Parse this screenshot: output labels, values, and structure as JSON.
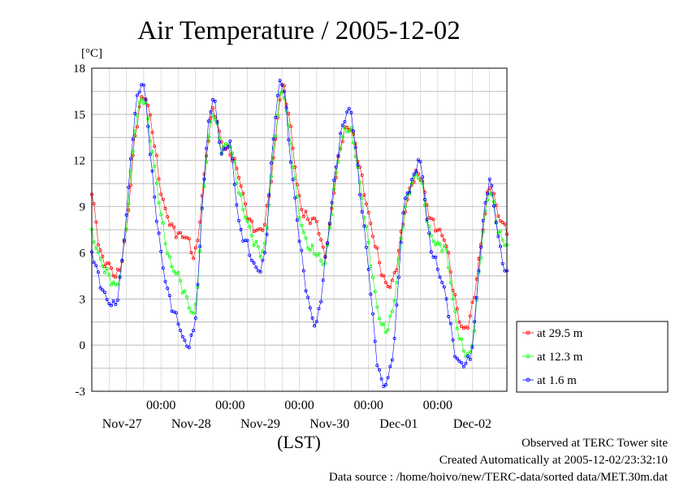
{
  "chart_data": {
    "type": "line",
    "title": "Air Temperature / 2005-12-02",
    "ylabel": "[°C]",
    "xlabel": "(LST)",
    "ylim": [
      -3,
      18
    ],
    "yticks": [
      -3,
      0,
      3,
      6,
      9,
      12,
      15,
      18
    ],
    "xlim_hours": [
      0,
      144
    ],
    "date_ticks": [
      {
        "hour": 24,
        "time": "00:00",
        "date": "Nov-27"
      },
      {
        "hour": 48,
        "time": "00:00",
        "date": "Nov-28"
      },
      {
        "hour": 72,
        "time": "00:00",
        "date": "Nov-29"
      },
      {
        "hour": 96,
        "time": "00:00",
        "date": "Nov-30"
      },
      {
        "hour": 120,
        "time": "00:00",
        "date": "Dec-01"
      }
    ],
    "extra_date_label": {
      "hour": 132,
      "date": "Dec-02"
    },
    "grid": true,
    "series_hours": [
      0,
      3,
      6,
      9,
      12,
      15,
      18,
      21,
      24,
      27,
      30,
      33,
      36,
      39,
      42,
      45,
      48,
      51,
      54,
      57,
      60,
      63,
      66,
      69,
      72,
      75,
      78,
      81,
      84,
      87,
      90,
      93,
      96,
      99,
      102,
      105,
      108,
      111,
      114,
      117,
      120,
      123,
      126,
      129,
      132,
      135,
      138,
      141,
      144
    ],
    "series": [
      {
        "name": "at 29.5 m",
        "color": "#ff0000",
        "values": [
          9.8,
          6.0,
          5.2,
          4.6,
          7.5,
          13.5,
          16.2,
          14.0,
          10.0,
          8.0,
          7.2,
          7.0,
          6.0,
          11.0,
          15.2,
          13.2,
          12.5,
          11.0,
          8.5,
          7.5,
          8.0,
          12.0,
          16.8,
          14.0,
          9.5,
          8.2,
          8.0,
          6.0,
          10.0,
          13.5,
          14.0,
          11.5,
          8.5,
          6.0,
          4.0,
          4.5,
          8.0,
          10.5,
          11.0,
          8.5,
          7.5,
          6.5,
          3.0,
          1.0,
          2.5,
          6.5,
          10.2,
          8.5,
          7.5
        ]
      },
      {
        "name": "at 12.3 m",
        "color": "#00ff00",
        "values": [
          7.2,
          5.5,
          4.5,
          4.0,
          7.8,
          14.0,
          16.0,
          12.5,
          8.5,
          5.5,
          4.5,
          3.0,
          2.5,
          10.5,
          15.0,
          12.8,
          13.0,
          10.0,
          8.0,
          6.5,
          6.5,
          12.5,
          16.5,
          13.0,
          8.5,
          6.5,
          6.0,
          5.5,
          10.0,
          13.5,
          13.8,
          10.5,
          6.5,
          2.5,
          1.0,
          3.0,
          8.0,
          10.5,
          10.8,
          7.5,
          6.5,
          6.0,
          2.0,
          -0.3,
          0.0,
          6.0,
          10.0,
          7.5,
          6.5
        ]
      },
      {
        "name": "at 1.6 m",
        "color": "#0000ff",
        "values": [
          6.0,
          4.0,
          2.8,
          3.2,
          8.5,
          15.0,
          16.8,
          11.0,
          6.0,
          3.0,
          1.5,
          0.0,
          2.0,
          11.0,
          16.0,
          12.5,
          13.0,
          8.0,
          6.5,
          5.0,
          6.0,
          13.5,
          17.2,
          12.0,
          7.0,
          3.0,
          1.5,
          5.5,
          10.5,
          14.2,
          15.0,
          10.0,
          5.0,
          -1.0,
          -2.5,
          0.5,
          8.5,
          10.5,
          11.8,
          7.0,
          5.0,
          3.0,
          -0.5,
          -1.2,
          0.0,
          6.5,
          10.6,
          7.0,
          4.5
        ]
      }
    ],
    "legend": {
      "position": "lower-right outside",
      "entries": [
        "at 29.5 m",
        "at 12.3 m",
        "at 1.6 m"
      ]
    }
  },
  "footer": {
    "site": "Observed at TERC Tower site",
    "created": "Created Automatically at 2005-12-02/23:32:10",
    "source": "Data source : /home/hoivo/new/TERC-data/sorted  data/MET.30m.dat"
  }
}
